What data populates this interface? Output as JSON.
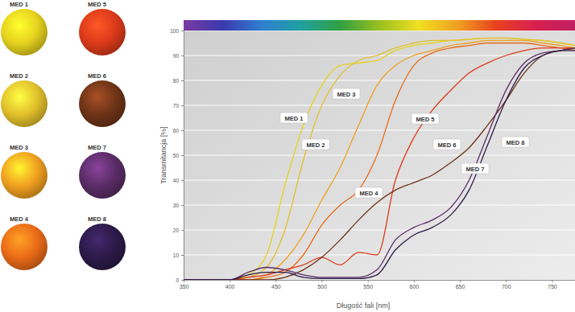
{
  "chart_data": {
    "type": "line",
    "x_label": "Długość fali [nm]",
    "y_label": "Transmitancja [%]",
    "x": [
      350,
      400,
      420,
      440,
      460,
      480,
      500,
      520,
      540,
      560,
      580,
      600,
      620,
      640,
      660,
      680,
      700,
      720,
      740,
      760,
      775
    ],
    "xlim": [
      350,
      775
    ],
    "xticks": [
      350,
      400,
      450,
      500,
      550,
      600,
      650,
      700,
      750
    ],
    "ylim": [
      0,
      100
    ],
    "yticks": [
      0,
      10,
      20,
      30,
      40,
      50,
      60,
      70,
      80,
      90,
      100
    ],
    "grid": true,
    "series": [
      {
        "name": "MED 1",
        "color": "#e6d21e",
        "values": [
          0,
          0,
          2,
          10,
          38,
          62,
          78,
          86,
          87,
          88,
          92,
          94,
          95,
          96,
          96.5,
          97,
          97,
          96.5,
          96,
          95,
          94
        ]
      },
      {
        "name": "MED 2",
        "color": "#e2c02c",
        "values": [
          0,
          0,
          1,
          5,
          20,
          48,
          70,
          82,
          88,
          90,
          93,
          95,
          96,
          96,
          96.5,
          97,
          97,
          96.5,
          96,
          95,
          94
        ]
      },
      {
        "name": "MED 3",
        "color": "#f0a020",
        "values": [
          0,
          0,
          0,
          2,
          8,
          18,
          32,
          45,
          62,
          78,
          86,
          90,
          92,
          94,
          95,
          96,
          96,
          96,
          95,
          94,
          93
        ]
      },
      {
        "name": "MED 4",
        "color": "#ea6a18",
        "values": [
          0,
          0,
          0,
          1,
          3,
          10,
          22,
          30,
          36,
          50,
          72,
          86,
          91,
          93,
          94,
          95,
          95,
          95,
          94,
          93,
          92
        ]
      },
      {
        "name": "MED 5",
        "color": "#dc3a1a",
        "values": [
          0,
          0,
          1,
          2,
          4,
          6,
          9,
          6,
          11,
          10,
          40,
          57,
          68,
          76,
          83,
          87,
          90,
          92,
          93,
          93,
          93
        ]
      },
      {
        "name": "MED 6",
        "color": "#6e3418",
        "values": [
          0,
          0,
          0,
          0,
          1,
          4,
          9,
          16,
          24,
          31,
          36,
          39,
          42,
          47,
          53,
          62,
          72,
          83,
          90,
          92,
          93
        ]
      },
      {
        "name": "MED 7",
        "color": "#5a2c66",
        "values": [
          0,
          0,
          3,
          5,
          4,
          2,
          1,
          1,
          1,
          4,
          16,
          21,
          24,
          29,
          40,
          58,
          76,
          87,
          91,
          92,
          93
        ]
      },
      {
        "name": "MED 8",
        "color": "#2c1a48",
        "values": [
          0,
          0,
          2,
          3,
          3,
          1,
          0.5,
          0.5,
          0.5,
          2,
          12,
          18,
          21,
          26,
          36,
          54,
          72,
          85,
          90,
          92,
          92
        ]
      }
    ]
  }
}
